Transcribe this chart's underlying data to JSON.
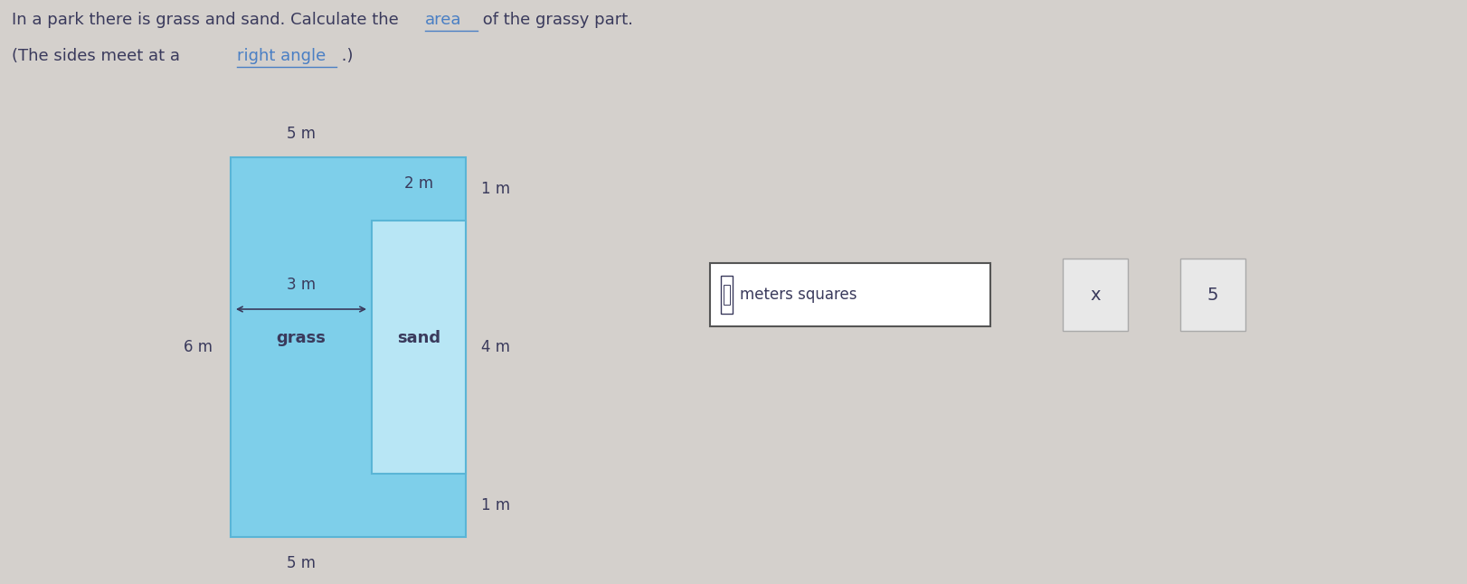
{
  "bg_color": "#d4d0cc",
  "grass_color": "#7ecfea",
  "sand_color": "#b8e6f5",
  "grass_label": "grass",
  "sand_label": "sand",
  "dim_5m_top": "5 m",
  "dim_5m_bot": "5 m",
  "dim_6m": "6 m",
  "dim_3m": "3 m",
  "dim_2m": "2 m",
  "dim_4m": "4 m",
  "dim_1m_top": "1 m",
  "dim_1m_bot": "1 m",
  "input_box_text": "meters squares",
  "x_button": "x",
  "undo_symbol": "5",
  "text_color": "#3a3a5c",
  "link_color": "#4a7fc4",
  "input_border_color": "#555555",
  "btn_bg": "#e8e8e8",
  "shape_border_color": "#5ab5d6",
  "arrow_color": "#3a3a5c",
  "title1_pre": "In a park there is grass and sand. Calculate the ",
  "title1_link": "area",
  "title1_post": " of the grassy part.",
  "title2_pre": "(The sides meet at a ",
  "title2_link": "right angle",
  "title2_post": " .)"
}
